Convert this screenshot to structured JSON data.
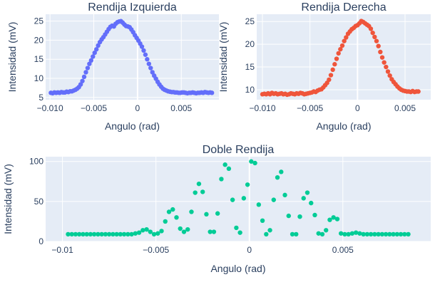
{
  "colors": {
    "plot_bg": "#E5ECF6",
    "grid": "#ffffff",
    "text": "#2a3f5f",
    "left": "#636EFA",
    "right": "#EF553B",
    "double": "#00CC96"
  },
  "chart_data": [
    {
      "id": "left",
      "type": "scatter",
      "title": "Rendija Izquierda",
      "xlabel": "Angulo (rad)",
      "ylabel": "Intensidad (mV)",
      "xlim": [
        -0.0105,
        0.0093
      ],
      "ylim": [
        4.4,
        26.8
      ],
      "xticks": [
        -0.01,
        -0.005,
        0,
        0.005
      ],
      "xtick_labels": [
        "−0.010",
        "−0.005",
        "0",
        "0.005"
      ],
      "yticks": [
        5,
        10,
        15,
        20,
        25
      ],
      "ytick_labels": [
        "5",
        "10",
        "15",
        "20",
        "25"
      ],
      "grid": true,
      "color": "#636EFA",
      "x": [
        -0.0099,
        -0.0097,
        -0.0095,
        -0.0093,
        -0.0091,
        -0.0089,
        -0.0087,
        -0.0085,
        -0.0083,
        -0.0081,
        -0.0079,
        -0.0077,
        -0.0075,
        -0.0073,
        -0.0071,
        -0.0069,
        -0.0067,
        -0.0065,
        -0.0063,
        -0.0061,
        -0.0059,
        -0.0057,
        -0.0055,
        -0.0053,
        -0.0051,
        -0.0049,
        -0.0047,
        -0.0045,
        -0.0043,
        -0.0041,
        -0.0039,
        -0.0037,
        -0.0035,
        -0.0033,
        -0.0031,
        -0.0029,
        -0.0027,
        -0.0025,
        -0.0023,
        -0.0021,
        -0.0019,
        -0.0017,
        -0.0015,
        -0.0013,
        -0.0011,
        -0.0009,
        -0.0007,
        -0.0005,
        -0.0003,
        -0.0001,
        0.0001,
        0.0003,
        0.0005,
        0.0007,
        0.0009,
        0.0011,
        0.0013,
        0.0015,
        0.0017,
        0.0019,
        0.0021,
        0.0023,
        0.0025,
        0.0027,
        0.0029,
        0.0031,
        0.0033,
        0.0035,
        0.0037,
        0.0039,
        0.0041,
        0.0043,
        0.0045,
        0.0047,
        0.0049,
        0.0051,
        0.0053,
        0.0055,
        0.0057,
        0.0059,
        0.0061,
        0.0063,
        0.0065,
        0.0067,
        0.0069,
        0.0071,
        0.0073,
        0.0075,
        0.0077,
        0.0079,
        0.0081,
        0.0083,
        0.0085
      ],
      "y": [
        6.2,
        6.1,
        6.3,
        6.2,
        6.3,
        6.2,
        6.4,
        6.3,
        6.3,
        6.5,
        6.4,
        6.6,
        6.6,
        6.8,
        7.0,
        7.3,
        7.7,
        8.4,
        9.3,
        10.4,
        11.6,
        12.7,
        13.8,
        14.7,
        15.7,
        16.7,
        17.6,
        18.6,
        19.5,
        20.2,
        20.8,
        21.5,
        22.2,
        22.9,
        23.5,
        23.8,
        23.6,
        24.3,
        24.7,
        24.9,
        25.0,
        24.6,
        24.1,
        23.7,
        23.6,
        23.4,
        22.8,
        22.1,
        21.3,
        20.6,
        19.9,
        19.1,
        18.3,
        17.3,
        16.2,
        15.0,
        13.8,
        12.7,
        11.6,
        10.7,
        9.9,
        9.1,
        8.4,
        7.8,
        7.3,
        7.0,
        6.8,
        6.6,
        6.5,
        6.4,
        6.4,
        6.3,
        6.3,
        6.2,
        6.2,
        6.3,
        6.3,
        6.2,
        6.1,
        6.2,
        6.2,
        6.3,
        6.2,
        6.1,
        6.2,
        6.2,
        6.3,
        6.2,
        6.4,
        6.3,
        6.2,
        6.3,
        6.2
      ]
    },
    {
      "id": "right",
      "type": "scatter",
      "title": "Rendija Derecha",
      "xlabel": "Angulo (rad)",
      "ylabel": "Intensidad (mV)",
      "xlim": [
        -0.0106,
        0.0077
      ],
      "ylim": [
        7.8,
        26.6
      ],
      "xticks": [
        -0.01,
        -0.005,
        0,
        0.005
      ],
      "xtick_labels": [
        "−0.010",
        "−0.005",
        "0",
        "0.005"
      ],
      "yticks": [
        10,
        15,
        20,
        25
      ],
      "ytick_labels": [
        "10",
        "15",
        "20",
        "25"
      ],
      "grid": true,
      "color": "#EF553B",
      "x": [
        -0.01,
        -0.0098,
        -0.0096,
        -0.0094,
        -0.0092,
        -0.009,
        -0.0088,
        -0.0086,
        -0.0084,
        -0.0082,
        -0.008,
        -0.0078,
        -0.0076,
        -0.0074,
        -0.0072,
        -0.007,
        -0.0068,
        -0.0066,
        -0.0064,
        -0.0062,
        -0.006,
        -0.0058,
        -0.0056,
        -0.0054,
        -0.0052,
        -0.005,
        -0.0048,
        -0.0046,
        -0.0044,
        -0.0042,
        -0.004,
        -0.0038,
        -0.0036,
        -0.0034,
        -0.0032,
        -0.003,
        -0.0028,
        -0.0026,
        -0.0024,
        -0.0022,
        -0.002,
        -0.0018,
        -0.0016,
        -0.0014,
        -0.0012,
        -0.001,
        -0.0008,
        -0.0006,
        -0.0004,
        -0.0002,
        0.0,
        0.0002,
        0.0004,
        0.0006,
        0.0008,
        0.001,
        0.0012,
        0.0014,
        0.0016,
        0.0018,
        0.002,
        0.0022,
        0.0024,
        0.0026,
        0.0028,
        0.003,
        0.0032,
        0.0034,
        0.0036,
        0.0038,
        0.004,
        0.0042,
        0.0044,
        0.0046,
        0.0048,
        0.005,
        0.0052,
        0.0054,
        0.0056,
        0.0058,
        0.006,
        0.0062,
        0.0064
      ],
      "y": [
        9.0,
        9.1,
        9.0,
        9.2,
        9.0,
        9.3,
        9.1,
        9.2,
        9.0,
        9.1,
        9.2,
        9.0,
        9.1,
        8.9,
        9.0,
        9.2,
        9.1,
        9.0,
        9.2,
        9.1,
        9.3,
        9.2,
        9.0,
        9.1,
        9.2,
        9.3,
        9.4,
        9.6,
        9.5,
        9.8,
        10.0,
        10.1,
        10.5,
        11.0,
        11.5,
        12.2,
        13.2,
        14.4,
        15.6,
        16.8,
        18.0,
        18.9,
        19.7,
        20.7,
        21.5,
        22.3,
        22.8,
        23.3,
        23.6,
        24.0,
        24.2,
        24.6,
        25.1,
        24.9,
        24.6,
        24.3,
        24.0,
        23.4,
        22.5,
        21.6,
        20.7,
        19.6,
        18.3,
        17.1,
        16.0,
        15.0,
        14.0,
        13.1,
        12.3,
        11.7,
        11.2,
        10.7,
        10.3,
        10.0,
        9.8,
        9.7,
        9.6,
        9.6,
        9.5,
        9.7,
        9.5,
        9.6,
        9.6
      ]
    },
    {
      "id": "double",
      "type": "scatter",
      "title": "Doble Rendija",
      "xlabel": "Angulo (rad)",
      "ylabel": "Intensidad (mV)",
      "xlim": [
        -0.0109,
        0.0097
      ],
      "ylim": [
        0,
        106
      ],
      "xticks": [
        -0.01,
        -0.005,
        0,
        0.005
      ],
      "xtick_labels": [
        "−0.01",
        "−0.005",
        "0",
        "0.005"
      ],
      "yticks": [
        0,
        50,
        100
      ],
      "ytick_labels": [
        "0",
        "50",
        "100"
      ],
      "grid": true,
      "color": "#00CC96",
      "x": [
        -0.0097,
        -0.0095,
        -0.0093,
        -0.0091,
        -0.0089,
        -0.0087,
        -0.0085,
        -0.0083,
        -0.0081,
        -0.0079,
        -0.0077,
        -0.0075,
        -0.0073,
        -0.0071,
        -0.0069,
        -0.0067,
        -0.0065,
        -0.0063,
        -0.0061,
        -0.0059,
        -0.0057,
        -0.0055,
        -0.0053,
        -0.0051,
        -0.0049,
        -0.0047,
        -0.0045,
        -0.0043,
        -0.0041,
        -0.0039,
        -0.0037,
        -0.0035,
        -0.0033,
        -0.0031,
        -0.0029,
        -0.0027,
        -0.0025,
        -0.0023,
        -0.0021,
        -0.0019,
        -0.0017,
        -0.0015,
        -0.0013,
        -0.0011,
        -0.0009,
        -0.0007,
        -0.0005,
        -0.0003,
        -0.0001,
        0.0001,
        0.0003,
        0.0005,
        0.0007,
        0.0009,
        0.0011,
        0.0013,
        0.0015,
        0.0017,
        0.0019,
        0.0021,
        0.0023,
        0.0025,
        0.0027,
        0.0029,
        0.0031,
        0.0033,
        0.0035,
        0.0037,
        0.0039,
        0.0041,
        0.0043,
        0.0045,
        0.0047,
        0.0049,
        0.0051,
        0.0053,
        0.0055,
        0.0057,
        0.0059,
        0.0061,
        0.0063,
        0.0065,
        0.0067,
        0.0069,
        0.0071,
        0.0073,
        0.0075,
        0.0077,
        0.0079,
        0.0081,
        0.0083,
        0.0085
      ],
      "y": [
        9,
        9,
        9,
        9,
        9,
        9,
        9,
        9,
        9,
        9,
        9,
        9,
        9,
        9,
        9,
        9,
        9,
        9,
        10,
        11,
        14,
        15,
        12,
        9,
        10,
        13,
        25,
        37,
        40,
        30,
        16,
        12,
        15,
        37,
        61,
        72,
        62,
        34,
        12,
        12,
        35,
        78,
        96,
        91,
        52,
        17,
        11,
        54,
        71,
        100,
        98,
        46,
        26,
        9,
        14,
        52,
        80,
        87,
        58,
        32,
        9,
        9,
        31,
        54,
        61,
        48,
        33,
        10,
        9,
        14,
        27,
        30,
        28,
        10,
        9,
        9,
        10,
        11,
        10,
        9,
        9,
        9,
        9,
        9,
        9,
        9,
        9,
        9,
        9,
        9,
        9,
        9
      ]
    }
  ]
}
